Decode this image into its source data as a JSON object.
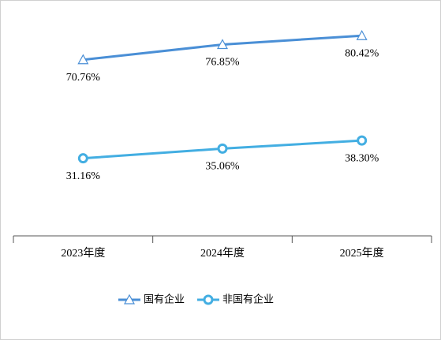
{
  "chart_data": {
    "type": "line",
    "categories": [
      "2023年度",
      "2024年度",
      "2025年度"
    ],
    "series": [
      {
        "name": "国有企业",
        "color": "#4a8fd6",
        "marker": "triangle",
        "values": [
          70.76,
          76.85,
          80.42
        ],
        "value_labels": [
          "70.76%",
          "76.85%",
          "80.42%"
        ]
      },
      {
        "name": "非国有企业",
        "color": "#43aee2",
        "marker": "circle",
        "values": [
          31.16,
          35.06,
          38.3
        ],
        "value_labels": [
          "31.16%",
          "35.06%",
          "38.30%"
        ]
      }
    ],
    "ylim": [
      0,
      90
    ]
  }
}
